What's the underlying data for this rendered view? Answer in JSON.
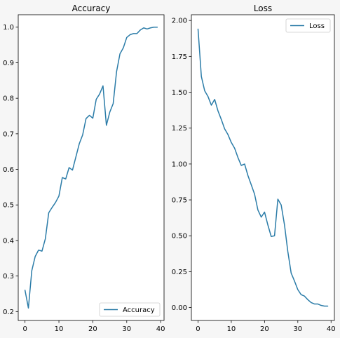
{
  "colors": {
    "series": "#2b7ca8",
    "background": "#f6f6f6"
  },
  "chart_data": [
    {
      "type": "line",
      "title": "Accuracy",
      "legend_position": "bottom-right",
      "grid": false,
      "xlim": [
        -2,
        41
      ],
      "ylim": [
        0.175,
        1.035
      ],
      "xticks": [
        0,
        10,
        20,
        30,
        40
      ],
      "xtick_labels": [
        "0",
        "10",
        "20",
        "30",
        "40"
      ],
      "yticks": [
        0.2,
        0.3,
        0.4,
        0.5,
        0.6,
        0.7,
        0.8,
        0.9,
        1.0
      ],
      "ytick_labels": [
        "0.2",
        "0.3",
        "0.4",
        "0.5",
        "0.6",
        "0.7",
        "0.8",
        "0.9",
        "1.0"
      ],
      "series": [
        {
          "name": "Accuracy",
          "x": [
            0,
            1,
            2,
            3,
            4,
            5,
            6,
            7,
            8,
            9,
            10,
            11,
            12,
            13,
            14,
            15,
            16,
            17,
            18,
            19,
            20,
            21,
            22,
            23,
            24,
            25,
            26,
            27,
            28,
            29,
            30,
            31,
            32,
            33,
            34,
            35,
            36,
            37,
            38,
            39
          ],
          "y": [
            0.26,
            0.21,
            0.315,
            0.355,
            0.373,
            0.37,
            0.405,
            0.478,
            0.493,
            0.507,
            0.525,
            0.577,
            0.573,
            0.605,
            0.598,
            0.635,
            0.672,
            0.697,
            0.743,
            0.752,
            0.744,
            0.797,
            0.812,
            0.835,
            0.724,
            0.761,
            0.785,
            0.875,
            0.925,
            0.942,
            0.971,
            0.979,
            0.982,
            0.982,
            0.992,
            0.998,
            0.995,
            0.998,
            1.0,
            1.0
          ]
        }
      ]
    },
    {
      "type": "line",
      "title": "Loss",
      "legend_position": "top-right",
      "grid": false,
      "xlim": [
        -2,
        41
      ],
      "ylim": [
        -0.09,
        2.04
      ],
      "xticks": [
        0,
        10,
        20,
        30,
        40
      ],
      "xtick_labels": [
        "0",
        "10",
        "20",
        "30",
        "40"
      ],
      "yticks": [
        0.0,
        0.25,
        0.5,
        0.75,
        1.0,
        1.25,
        1.5,
        1.75,
        2.0
      ],
      "ytick_labels": [
        "0.00",
        "0.25",
        "0.50",
        "0.75",
        "1.00",
        "1.25",
        "1.50",
        "1.75",
        "2.00"
      ],
      "series": [
        {
          "name": "Loss",
          "x": [
            0,
            1,
            2,
            3,
            4,
            5,
            6,
            7,
            8,
            9,
            10,
            11,
            12,
            13,
            14,
            15,
            16,
            17,
            18,
            19,
            20,
            21,
            22,
            23,
            24,
            25,
            26,
            27,
            28,
            29,
            30,
            31,
            32,
            33,
            34,
            35,
            36,
            37,
            38,
            39
          ],
          "y": [
            1.94,
            1.61,
            1.51,
            1.47,
            1.41,
            1.45,
            1.37,
            1.31,
            1.245,
            1.205,
            1.15,
            1.11,
            1.045,
            0.99,
            1.0,
            0.92,
            0.855,
            0.79,
            0.68,
            0.63,
            0.665,
            0.575,
            0.495,
            0.5,
            0.755,
            0.715,
            0.575,
            0.39,
            0.24,
            0.185,
            0.125,
            0.09,
            0.08,
            0.055,
            0.035,
            0.025,
            0.025,
            0.015,
            0.01,
            0.01
          ]
        }
      ]
    }
  ]
}
